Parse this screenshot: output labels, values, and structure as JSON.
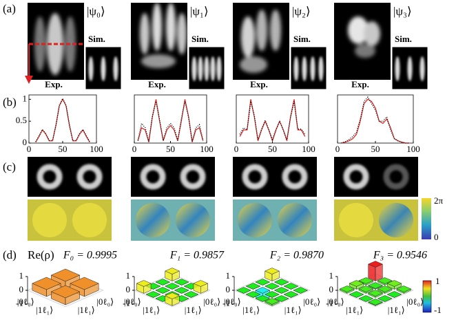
{
  "panel_labels": [
    "(a)",
    "(b)",
    "(c)",
    "(d)"
  ],
  "panels": [
    {
      "state": "|ψ₀⟩",
      "sim": "Sim.",
      "exp": "Exp."
    },
    {
      "state": "|ψ₁⟩",
      "sim": "Sim.",
      "exp": "Exp."
    },
    {
      "state": "|ψ₂⟩",
      "sim": "Sim.",
      "exp": "Exp."
    },
    {
      "state": "|ψ₃⟩",
      "sim": "Sim.",
      "exp": "Exp."
    }
  ],
  "phase_colorbar": {
    "labels": [
      "2π",
      "0"
    ]
  },
  "density_title": "Re(ρ)",
  "density_colorbar": {
    "labels": [
      "1",
      "-1"
    ]
  },
  "chart_data": [
    {
      "type": "line",
      "x": [
        10,
        15,
        20,
        25,
        30,
        35,
        40,
        45,
        50,
        55,
        60,
        65,
        70,
        75,
        80,
        85,
        90
      ],
      "xlim": [
        0,
        100
      ],
      "xticks": [
        0,
        50,
        100
      ],
      "ylim": [
        0,
        1.1
      ],
      "yticks": [
        0,
        0.5,
        1
      ],
      "series": [
        {
          "color": "#e02020",
          "style": "solid",
          "values": [
            0.02,
            0.15,
            0.3,
            0.2,
            0.05,
            0.05,
            0.4,
            0.85,
            1,
            0.85,
            0.4,
            0.05,
            0.05,
            0.2,
            0.3,
            0.15,
            0.02
          ]
        },
        {
          "color": "#000000",
          "style": "dotted",
          "values": [
            0.03,
            0.17,
            0.31,
            0.22,
            0.06,
            0.06,
            0.42,
            0.86,
            1.02,
            0.86,
            0.42,
            0.06,
            0.06,
            0.22,
            0.31,
            0.17,
            0.03
          ]
        }
      ]
    },
    {
      "type": "line",
      "x": [
        5,
        10,
        15,
        20,
        25,
        30,
        35,
        40,
        45,
        50,
        55,
        60,
        65,
        70,
        75,
        80,
        85,
        90,
        95
      ],
      "xlim": [
        0,
        100
      ],
      "xticks": [
        0,
        50,
        100
      ],
      "ylim": [
        0,
        1.1
      ],
      "series": [
        {
          "color": "#e02020",
          "style": "solid",
          "values": [
            0.05,
            0.35,
            0.3,
            0.02,
            0.6,
            1,
            0.5,
            0.05,
            0.3,
            0.4,
            0.3,
            0.05,
            0.5,
            1,
            0.6,
            0.02,
            0.3,
            0.35,
            0.05
          ]
        },
        {
          "color": "#000000",
          "style": "dotted",
          "values": [
            0.06,
            0.45,
            0.35,
            0.04,
            0.62,
            0.95,
            0.52,
            0.06,
            0.35,
            0.45,
            0.35,
            0.06,
            0.55,
            0.95,
            0.6,
            0.04,
            0.35,
            0.42,
            0.06
          ]
        }
      ]
    },
    {
      "type": "line",
      "x": [
        5,
        10,
        15,
        20,
        25,
        30,
        35,
        40,
        45,
        50,
        55,
        60,
        65,
        70,
        75,
        80,
        85,
        90,
        95
      ],
      "xlim": [
        0,
        100
      ],
      "xticks": [
        0,
        50,
        100
      ],
      "ylim": [
        0,
        1.1
      ],
      "series": [
        {
          "color": "#e02020",
          "style": "solid",
          "values": [
            0.15,
            0.3,
            0.3,
            1,
            0.6,
            0.05,
            0.3,
            0.5,
            0.3,
            0.05,
            0.3,
            0.5,
            0.3,
            0.05,
            0.6,
            1,
            0.3,
            0.3,
            0.15
          ]
        },
        {
          "color": "#000000",
          "style": "dotted",
          "values": [
            0.2,
            0.35,
            0.3,
            0.95,
            0.62,
            0.08,
            0.32,
            0.52,
            0.3,
            0.08,
            0.32,
            0.5,
            0.3,
            0.08,
            0.58,
            0.95,
            0.32,
            0.32,
            0.2
          ]
        }
      ]
    },
    {
      "type": "line",
      "x": [
        5,
        10,
        15,
        20,
        25,
        30,
        35,
        40,
        45,
        50,
        55,
        60,
        65,
        70,
        75,
        80,
        85,
        90,
        95
      ],
      "xlim": [
        0,
        100
      ],
      "xticks": [
        0,
        50,
        100
      ],
      "ylim": [
        0,
        1.1
      ],
      "series": [
        {
          "color": "#e02020",
          "style": "solid",
          "values": [
            0,
            0.02,
            0.05,
            0.1,
            0.2,
            0.5,
            0.9,
            1,
            0.95,
            0.8,
            0.5,
            0.45,
            0.55,
            0.35,
            0.1,
            0.05,
            0.02,
            0,
            0
          ]
        },
        {
          "color": "#000000",
          "style": "dotted",
          "values": [
            0,
            0.03,
            0.08,
            0.15,
            0.25,
            0.55,
            0.95,
            1.05,
            0.9,
            0.75,
            0.5,
            0.5,
            0.6,
            0.3,
            0.1,
            0.05,
            0.02,
            0,
            0
          ]
        }
      ]
    },
    {
      "type": "bar3d",
      "title": "F₀ = 0.9995",
      "color": "#f0902a",
      "zlim": [
        -1,
        1
      ],
      "zticks": [
        -1,
        0,
        1
      ],
      "row_labels": [
        "|0ℓ₀⟩",
        "|1ℓ₁⟩"
      ],
      "col_labels": [
        "|0ℓ₀⟩",
        "|1ℓ₁⟩"
      ],
      "values": [
        [
          0.5,
          0.5
        ],
        [
          0.5,
          0.5
        ]
      ]
    },
    {
      "type": "bar3d",
      "title": "F₁ = 0.9857",
      "colormap": "jet",
      "zlim": [
        -1,
        1
      ],
      "zticks": [
        -1,
        0,
        1
      ],
      "row_labels": [
        "|0ℓ₀⟩",
        "|1ℓ₁⟩"
      ],
      "col_labels": [
        "|0ℓ₀⟩",
        "|1ℓ₁⟩"
      ],
      "values": [
        [
          0.5,
          0,
          0,
          0.5
        ],
        [
          0,
          0,
          0,
          0
        ],
        [
          0,
          0,
          0,
          0
        ],
        [
          0.5,
          0,
          0,
          0.5
        ]
      ]
    },
    {
      "type": "bar3d",
      "title": "F₂ = 0.9870",
      "colormap": "jet",
      "zlim": [
        -1,
        1
      ],
      "zticks": [
        -1,
        0,
        1
      ],
      "row_labels": [
        "|0ℓ₀⟩",
        "|1ℓ₁⟩"
      ],
      "col_labels": [
        "|0ℓ₀⟩",
        "|1ℓ₁⟩"
      ],
      "values": [
        [
          0.5,
          0,
          0,
          0
        ],
        [
          0,
          0,
          0,
          0
        ],
        [
          0,
          -0.5,
          0,
          0
        ],
        [
          0,
          0,
          0,
          0.1
        ]
      ]
    },
    {
      "type": "bar3d",
      "title": "F₃ = 0.9546",
      "colormap": "jet",
      "zlim": [
        -1,
        1
      ],
      "zticks": [
        -1,
        0,
        1
      ],
      "row_labels": [
        "|0ℓ₀⟩",
        "|1ℓ₁⟩"
      ],
      "col_labels": [
        "|0ℓ₀⟩",
        "|1ℓ₁⟩"
      ],
      "values": [
        [
          1,
          0.1,
          0.2,
          0.1
        ],
        [
          0.1,
          0.05,
          0.1,
          0
        ],
        [
          0.2,
          0.1,
          0.1,
          0
        ],
        [
          0.1,
          0,
          0,
          0.05
        ]
      ]
    }
  ]
}
